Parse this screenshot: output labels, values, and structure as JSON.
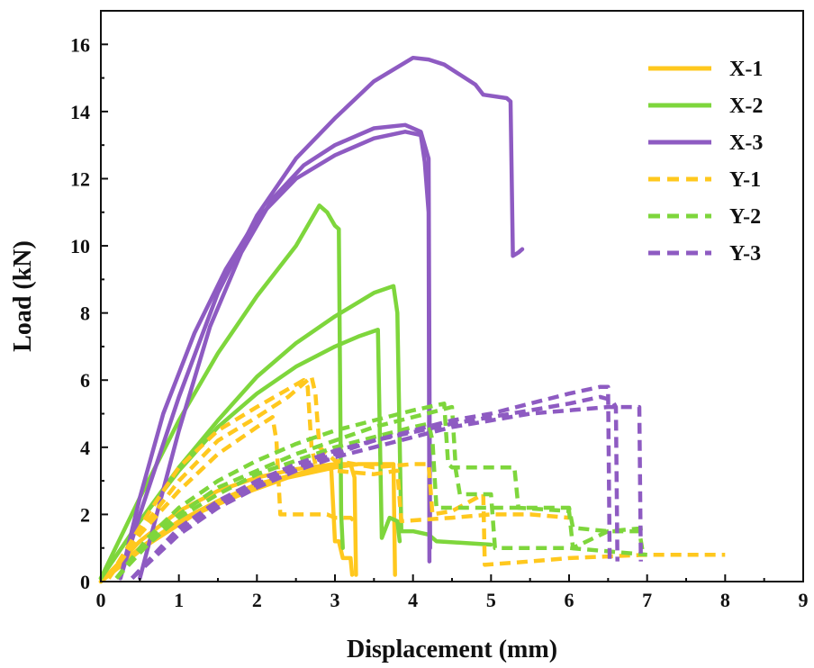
{
  "chart_data": {
    "type": "line",
    "xlabel": "Displacement (mm)",
    "ylabel": "Load (kN)",
    "xlim": [
      0,
      9
    ],
    "ylim": [
      0,
      17
    ],
    "x_ticks": [
      0,
      1,
      2,
      3,
      4,
      5,
      6,
      7,
      8,
      9
    ],
    "y_ticks": [
      0,
      2,
      4,
      6,
      8,
      10,
      12,
      14,
      16
    ],
    "grid": false,
    "legend_position": "top-right",
    "series": [
      {
        "name": "X-1",
        "color": "#FFC81E",
        "dash": "solid",
        "curves": [
          [
            [
              0,
              0
            ],
            [
              0.5,
              1.2
            ],
            [
              1,
              2.1
            ],
            [
              1.5,
              2.7
            ],
            [
              2,
              3.1
            ],
            [
              2.5,
              3.35
            ],
            [
              3,
              3.5
            ],
            [
              3.2,
              3.5
            ],
            [
              3.25,
              3.1
            ],
            [
              3.27,
              0.2
            ]
          ],
          [
            [
              0,
              0
            ],
            [
              0.6,
              1.1
            ],
            [
              1.2,
              2.0
            ],
            [
              1.8,
              2.6
            ],
            [
              2.4,
              3.1
            ],
            [
              3.0,
              3.4
            ],
            [
              3.3,
              3.5
            ],
            [
              3.6,
              3.5
            ],
            [
              3.75,
              3.5
            ],
            [
              3.77,
              0.2
            ]
          ],
          [
            [
              0,
              0
            ],
            [
              0.5,
              1.0
            ],
            [
              1,
              1.8
            ],
            [
              1.5,
              2.4
            ],
            [
              2,
              2.9
            ],
            [
              2.5,
              3.2
            ],
            [
              2.95,
              3.45
            ],
            [
              3.0,
              1.2
            ],
            [
              3.05,
              1.2
            ],
            [
              3.1,
              0.7
            ],
            [
              3.2,
              0.7
            ],
            [
              3.22,
              0.2
            ]
          ]
        ]
      },
      {
        "name": "X-2",
        "color": "#7ED63C",
        "dash": "solid",
        "curves": [
          [
            [
              0,
              0.1
            ],
            [
              0.5,
              2.5
            ],
            [
              1,
              4.8
            ],
            [
              1.5,
              6.8
            ],
            [
              2,
              8.5
            ],
            [
              2.5,
              10
            ],
            [
              2.8,
              11.2
            ],
            [
              2.9,
              11
            ],
            [
              3.0,
              10.6
            ],
            [
              3.05,
              10.5
            ],
            [
              3.08,
              2.0
            ],
            [
              3.1,
              1.0
            ]
          ],
          [
            [
              0,
              0.1
            ],
            [
              0.5,
              1.8
            ],
            [
              1,
              3.3
            ],
            [
              1.5,
              4.6
            ],
            [
              2,
              5.6
            ],
            [
              2.5,
              6.4
            ],
            [
              3,
              7.0
            ],
            [
              3.3,
              7.3
            ],
            [
              3.55,
              7.5
            ],
            [
              3.6,
              1.3
            ],
            [
              3.7,
              1.9
            ],
            [
              3.8,
              1.8
            ],
            [
              3.83,
              1.2
            ]
          ],
          [
            [
              0,
              0.1
            ],
            [
              0.5,
              1.8
            ],
            [
              1,
              3.4
            ],
            [
              1.5,
              4.8
            ],
            [
              2,
              6.1
            ],
            [
              2.5,
              7.1
            ],
            [
              3,
              7.9
            ],
            [
              3.5,
              8.6
            ],
            [
              3.75,
              8.8
            ],
            [
              3.8,
              8.0
            ],
            [
              3.85,
              1.5
            ],
            [
              4,
              1.5
            ],
            [
              4.2,
              1.4
            ],
            [
              4.3,
              1.2
            ],
            [
              5,
              1.1
            ]
          ]
        ]
      },
      {
        "name": "X-3",
        "color": "#8E5BC2",
        "dash": "solid",
        "curves": [
          [
            [
              0.25,
              0.1
            ],
            [
              0.5,
              2.5
            ],
            [
              0.8,
              5.0
            ],
            [
              1.2,
              7.4
            ],
            [
              1.6,
              9.3
            ],
            [
              2,
              10.8
            ],
            [
              2.5,
              12.0
            ],
            [
              3,
              12.7
            ],
            [
              3.5,
              13.2
            ],
            [
              3.9,
              13.4
            ],
            [
              4.1,
              13.3
            ],
            [
              4.15,
              12.5
            ],
            [
              4.2,
              11.0
            ],
            [
              4.21,
              0.6
            ]
          ],
          [
            [
              0.5,
              0.1
            ],
            [
              1,
              4.5
            ],
            [
              1.4,
              7.6
            ],
            [
              1.8,
              9.8
            ],
            [
              2.2,
              11.4
            ],
            [
              2.6,
              12.4
            ],
            [
              3,
              13.0
            ],
            [
              3.5,
              13.5
            ],
            [
              3.9,
              13.6
            ],
            [
              4.1,
              13.4
            ],
            [
              4.2,
              12.6
            ],
            [
              4.22,
              1.0
            ]
          ],
          [
            [
              0.25,
              0.1
            ],
            [
              0.5,
              2.0
            ],
            [
              1,
              5.5
            ],
            [
              1.5,
              8.6
            ],
            [
              2,
              10.9
            ],
            [
              2.5,
              12.6
            ],
            [
              3,
              13.8
            ],
            [
              3.5,
              14.9
            ],
            [
              4,
              15.6
            ],
            [
              4.2,
              15.55
            ],
            [
              4.4,
              15.4
            ],
            [
              4.6,
              15.1
            ],
            [
              4.8,
              14.8
            ],
            [
              4.9,
              14.5
            ],
            [
              5.2,
              14.4
            ],
            [
              5.25,
              14.3
            ],
            [
              5.28,
              9.7
            ],
            [
              5.35,
              9.8
            ],
            [
              5.4,
              9.9
            ]
          ]
        ]
      },
      {
        "name": "Y-1",
        "color": "#FFC81E",
        "dash": "dashed",
        "curves": [
          [
            [
              0.1,
              0.1
            ],
            [
              0.6,
              2.0
            ],
            [
              1,
              3.4
            ],
            [
              1.5,
              4.5
            ],
            [
              2,
              5.2
            ],
            [
              2.3,
              5.6
            ],
            [
              2.6,
              6.0
            ],
            [
              2.65,
              5.8
            ],
            [
              2.7,
              4.0
            ],
            [
              2.75,
              3.5
            ],
            [
              3,
              3.3
            ],
            [
              3.5,
              3.2
            ],
            [
              3.8,
              3.3
            ],
            [
              3.85,
              1.8
            ],
            [
              4.5,
              1.9
            ],
            [
              5,
              2.0
            ],
            [
              5.5,
              2.0
            ],
            [
              6,
              1.9
            ]
          ],
          [
            [
              0.1,
              0.1
            ],
            [
              0.6,
              1.8
            ],
            [
              1,
              3.0
            ],
            [
              1.5,
              4.2
            ],
            [
              2,
              4.9
            ],
            [
              2.4,
              5.5
            ],
            [
              2.7,
              6.1
            ],
            [
              2.75,
              5.6
            ],
            [
              2.8,
              4.0
            ],
            [
              3,
              3.6
            ],
            [
              3.5,
              3.4
            ],
            [
              4,
              3.5
            ],
            [
              4.2,
              3.5
            ],
            [
              4.25,
              2.0
            ],
            [
              4.5,
              2.1
            ],
            [
              4.9,
              2.6
            ],
            [
              4.92,
              0.5
            ],
            [
              5.5,
              0.6
            ],
            [
              6,
              0.7
            ],
            [
              7,
              0.8
            ],
            [
              8,
              0.8
            ]
          ],
          [
            [
              0.1,
              0.1
            ],
            [
              0.5,
              1.4
            ],
            [
              1,
              2.7
            ],
            [
              1.5,
              3.8
            ],
            [
              2,
              4.6
            ],
            [
              2.2,
              4.9
            ],
            [
              2.25,
              4.2
            ],
            [
              2.3,
              2.0
            ],
            [
              2.5,
              2.0
            ],
            [
              2.9,
              2.0
            ],
            [
              3,
              1.9
            ],
            [
              3.2,
              1.9
            ],
            [
              3.25,
              1.8
            ]
          ]
        ]
      },
      {
        "name": "Y-2",
        "color": "#7ED63C",
        "dash": "dashed",
        "curves": [
          [
            [
              0.2,
              0.1
            ],
            [
              0.6,
              1.3
            ],
            [
              1,
              2.2
            ],
            [
              1.5,
              3.0
            ],
            [
              2,
              3.6
            ],
            [
              2.5,
              4.1
            ],
            [
              3,
              4.5
            ],
            [
              3.5,
              4.8
            ],
            [
              4,
              5.1
            ],
            [
              4.4,
              5.3
            ],
            [
              4.45,
              3.5
            ],
            [
              4.5,
              3.4
            ],
            [
              5,
              3.4
            ],
            [
              5.3,
              3.4
            ],
            [
              5.35,
              2.2
            ],
            [
              6,
              2.1
            ],
            [
              6.05,
              1.0
            ],
            [
              6.5,
              1.5
            ],
            [
              7,
              1.6
            ]
          ],
          [
            [
              0.2,
              0.1
            ],
            [
              0.6,
              1.2
            ],
            [
              1,
              2.0
            ],
            [
              1.5,
              2.8
            ],
            [
              2,
              3.3
            ],
            [
              2.5,
              3.8
            ],
            [
              3,
              4.2
            ],
            [
              3.5,
              4.6
            ],
            [
              4,
              4.9
            ],
            [
              4.5,
              5.2
            ],
            [
              4.55,
              3.3
            ],
            [
              4.6,
              2.6
            ],
            [
              5,
              2.6
            ],
            [
              5.05,
              1.0
            ],
            [
              5.5,
              1.0
            ],
            [
              6,
              1.0
            ],
            [
              6.5,
              0.9
            ],
            [
              7,
              0.8
            ]
          ],
          [
            [
              0.2,
              0.1
            ],
            [
              0.6,
              1.1
            ],
            [
              1,
              1.9
            ],
            [
              1.5,
              2.6
            ],
            [
              2,
              3.2
            ],
            [
              2.5,
              3.6
            ],
            [
              3,
              4.0
            ],
            [
              3.5,
              4.3
            ],
            [
              4,
              4.6
            ],
            [
              4.2,
              4.7
            ],
            [
              4.25,
              4.2
            ],
            [
              4.3,
              2.2
            ],
            [
              4.6,
              2.2
            ],
            [
              5,
              2.2
            ],
            [
              5.5,
              2.2
            ],
            [
              6,
              2.2
            ],
            [
              6.05,
              1.6
            ],
            [
              6.5,
              1.5
            ],
            [
              6.9,
              1.5
            ],
            [
              6.95,
              0.8
            ]
          ]
        ]
      },
      {
        "name": "Y-3",
        "color": "#8E5BC2",
        "dash": "dashed",
        "curves": [
          [
            [
              0.4,
              0.1
            ],
            [
              1,
              1.6
            ],
            [
              1.5,
              2.4
            ],
            [
              2,
              3.0
            ],
            [
              2.5,
              3.5
            ],
            [
              3,
              3.9
            ],
            [
              3.5,
              4.2
            ],
            [
              4,
              4.45
            ],
            [
              4.5,
              4.7
            ],
            [
              5,
              4.9
            ],
            [
              5.5,
              5.1
            ],
            [
              6,
              5.3
            ],
            [
              6.4,
              5.5
            ],
            [
              6.55,
              5.4
            ],
            [
              6.6,
              5.2
            ],
            [
              6.62,
              0.6
            ]
          ],
          [
            [
              0.4,
              0.1
            ],
            [
              1,
              1.5
            ],
            [
              1.5,
              2.3
            ],
            [
              2,
              2.9
            ],
            [
              2.5,
              3.4
            ],
            [
              3,
              3.8
            ],
            [
              3.5,
              4.2
            ],
            [
              4,
              4.5
            ],
            [
              4.5,
              4.8
            ],
            [
              5,
              5.0
            ],
            [
              5.5,
              5.3
            ],
            [
              6,
              5.6
            ],
            [
              6.4,
              5.8
            ],
            [
              6.5,
              5.8
            ],
            [
              6.52,
              0.6
            ]
          ],
          [
            [
              0.4,
              0.1
            ],
            [
              1,
              1.4
            ],
            [
              1.5,
              2.2
            ],
            [
              2,
              2.8
            ],
            [
              2.5,
              3.3
            ],
            [
              3,
              3.7
            ],
            [
              3.5,
              4.0
            ],
            [
              4,
              4.3
            ],
            [
              4.5,
              4.6
            ],
            [
              5,
              4.8
            ],
            [
              5.5,
              5.0
            ],
            [
              6,
              5.1
            ],
            [
              6.5,
              5.2
            ],
            [
              6.9,
              5.2
            ],
            [
              6.92,
              0.6
            ]
          ]
        ]
      }
    ]
  }
}
